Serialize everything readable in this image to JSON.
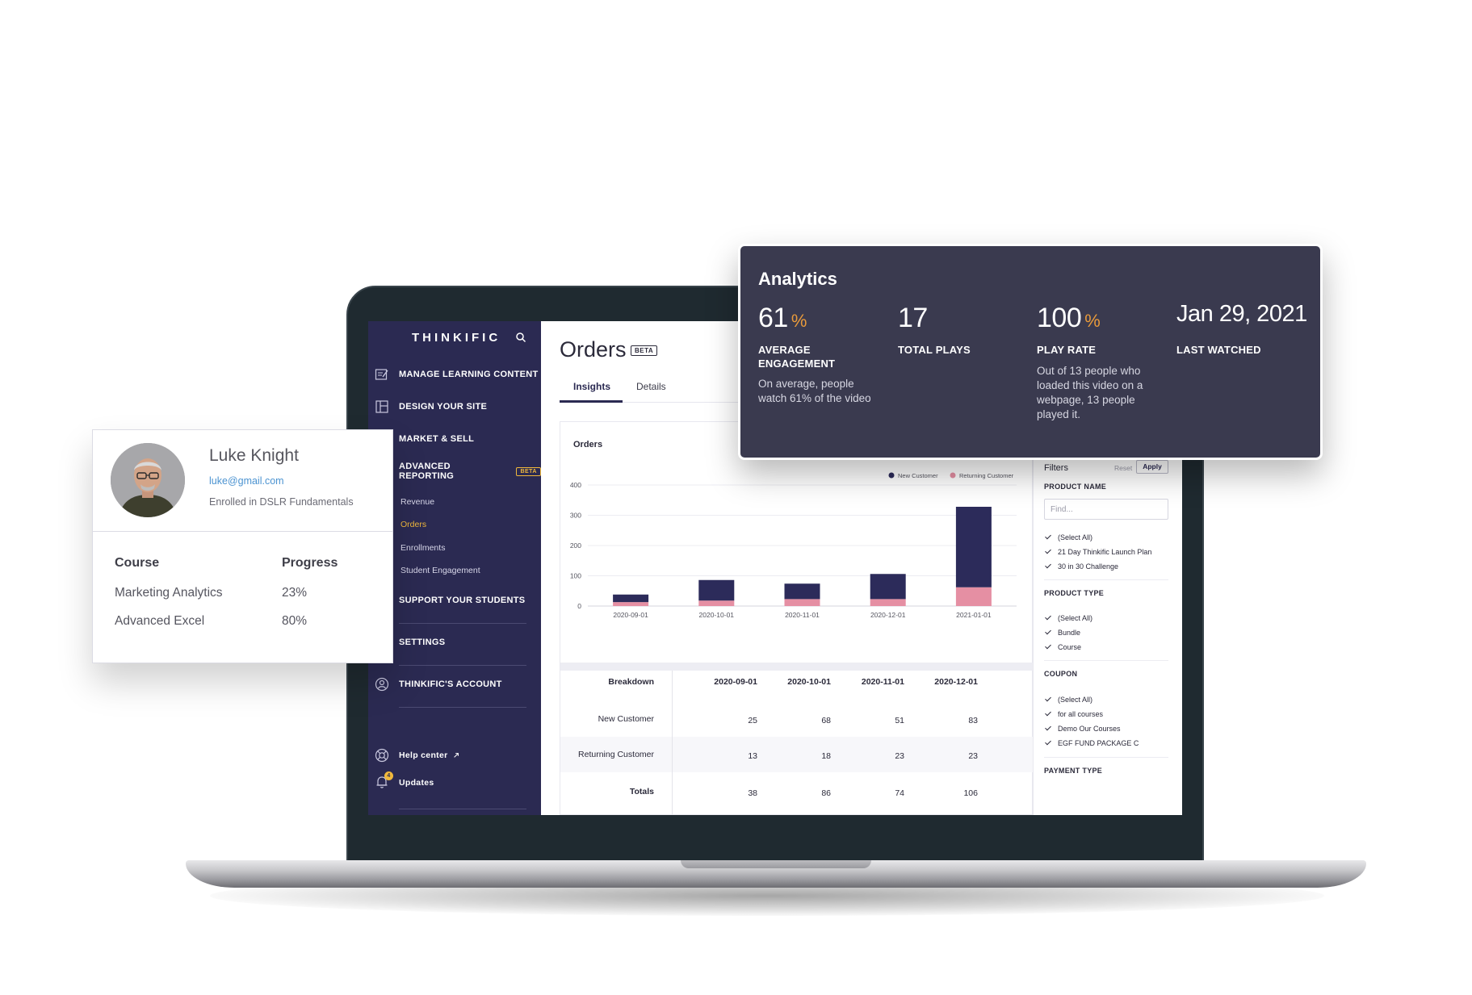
{
  "sidebar": {
    "brand": "THINKIFIC",
    "items": [
      {
        "label": "MANAGE LEARNING CONTENT",
        "icon": "edit-content-icon"
      },
      {
        "label": "DESIGN YOUR SITE",
        "icon": "layout-icon"
      },
      {
        "label": "MARKET & SELL",
        "icon": ""
      },
      {
        "label": "ADVANCED REPORTING",
        "badge": "BETA",
        "icon": ""
      },
      {
        "label": "SUPPORT YOUR STUDENTS",
        "icon": ""
      },
      {
        "label": "SETTINGS",
        "icon": ""
      },
      {
        "label": "THINKIFIC'S ACCOUNT",
        "icon": "account-icon"
      }
    ],
    "reporting_sub": [
      "Revenue",
      "Orders",
      "Enrollments",
      "Student Engagement"
    ],
    "active_sub": "Orders",
    "help_center": "Help center",
    "updates": "Updates",
    "updates_count": "4"
  },
  "main": {
    "title": "Orders",
    "title_badge": "BETA",
    "tabs": [
      "Insights",
      "Details"
    ],
    "active_tab": "Insights",
    "card_title": "Orders"
  },
  "chart_data": {
    "type": "bar",
    "stacked": true,
    "categories": [
      "2020-09-01",
      "2020-10-01",
      "2020-11-01",
      "2020-12-01",
      "2021-01-01"
    ],
    "series": [
      {
        "name": "New Customer",
        "values": [
          25,
          68,
          51,
          83,
          266
        ],
        "color": "#2c2b5a"
      },
      {
        "name": "Returning Customer",
        "values": [
          13,
          18,
          23,
          23,
          62
        ],
        "color": "#e58fa3"
      }
    ],
    "yticks": [
      0,
      100,
      200,
      300,
      400
    ],
    "ylim": [
      0,
      400
    ],
    "legend": "top-right",
    "grid": true
  },
  "table": {
    "header": [
      "Breakdown",
      "2020-09-01",
      "2020-10-01",
      "2020-11-01",
      "2020-12-01"
    ],
    "rows": [
      {
        "label": "New Customer",
        "values": [
          "25",
          "68",
          "51",
          "83"
        ]
      },
      {
        "label": "Returning Customer",
        "values": [
          "13",
          "18",
          "23",
          "23"
        ]
      },
      {
        "label": "Totals",
        "values": [
          "38",
          "86",
          "74",
          "106"
        ]
      }
    ]
  },
  "filters": {
    "title": "Filters",
    "reset": "Reset",
    "apply": "Apply",
    "product_name_label": "PRODUCT NAME",
    "find_placeholder": "Find...",
    "product_names": [
      "(Select All)",
      "21 Day Thinkific Launch Plan",
      "30 in 30 Challenge"
    ],
    "product_type_label": "PRODUCT TYPE",
    "product_types": [
      "(Select All)",
      "Bundle",
      "Course"
    ],
    "coupon_label": "COUPON",
    "coupons": [
      "(Select All)",
      "for all courses",
      "Demo Our Courses",
      "EGF FUND PACKAGE C"
    ],
    "payment_type_label": "PAYMENT TYPE"
  },
  "analytics": {
    "title": "Analytics",
    "stats": [
      {
        "value": "61",
        "unit": "%",
        "label_1": "AVERAGE",
        "label_2": "ENGAGEMENT",
        "desc_1": "On average, people",
        "desc_2": "watch 61% of the video"
      },
      {
        "value": "17",
        "unit": "",
        "label_1": "TOTAL PLAYS"
      },
      {
        "value": "100",
        "unit": "%",
        "label_1": "PLAY RATE",
        "desc_1": "Out of 13 people who",
        "desc_2": "loaded this video on a",
        "desc_3": "webpage, 13 people",
        "desc_4": "played it."
      },
      {
        "value": "Jan 29, 2021",
        "unit": "",
        "label_1": "LAST WATCHED"
      }
    ],
    "accent": "#e89a3b"
  },
  "student": {
    "name": "Luke Knight",
    "email": "luke@gmail.com",
    "enrolled": "Enrolled in DSLR Fundamentals",
    "col_course": "Course",
    "col_progress": "Progress",
    "courses": [
      {
        "name": "Marketing Analytics",
        "progress": "23%"
      },
      {
        "name": "Advanced Excel",
        "progress": "80%"
      }
    ]
  }
}
